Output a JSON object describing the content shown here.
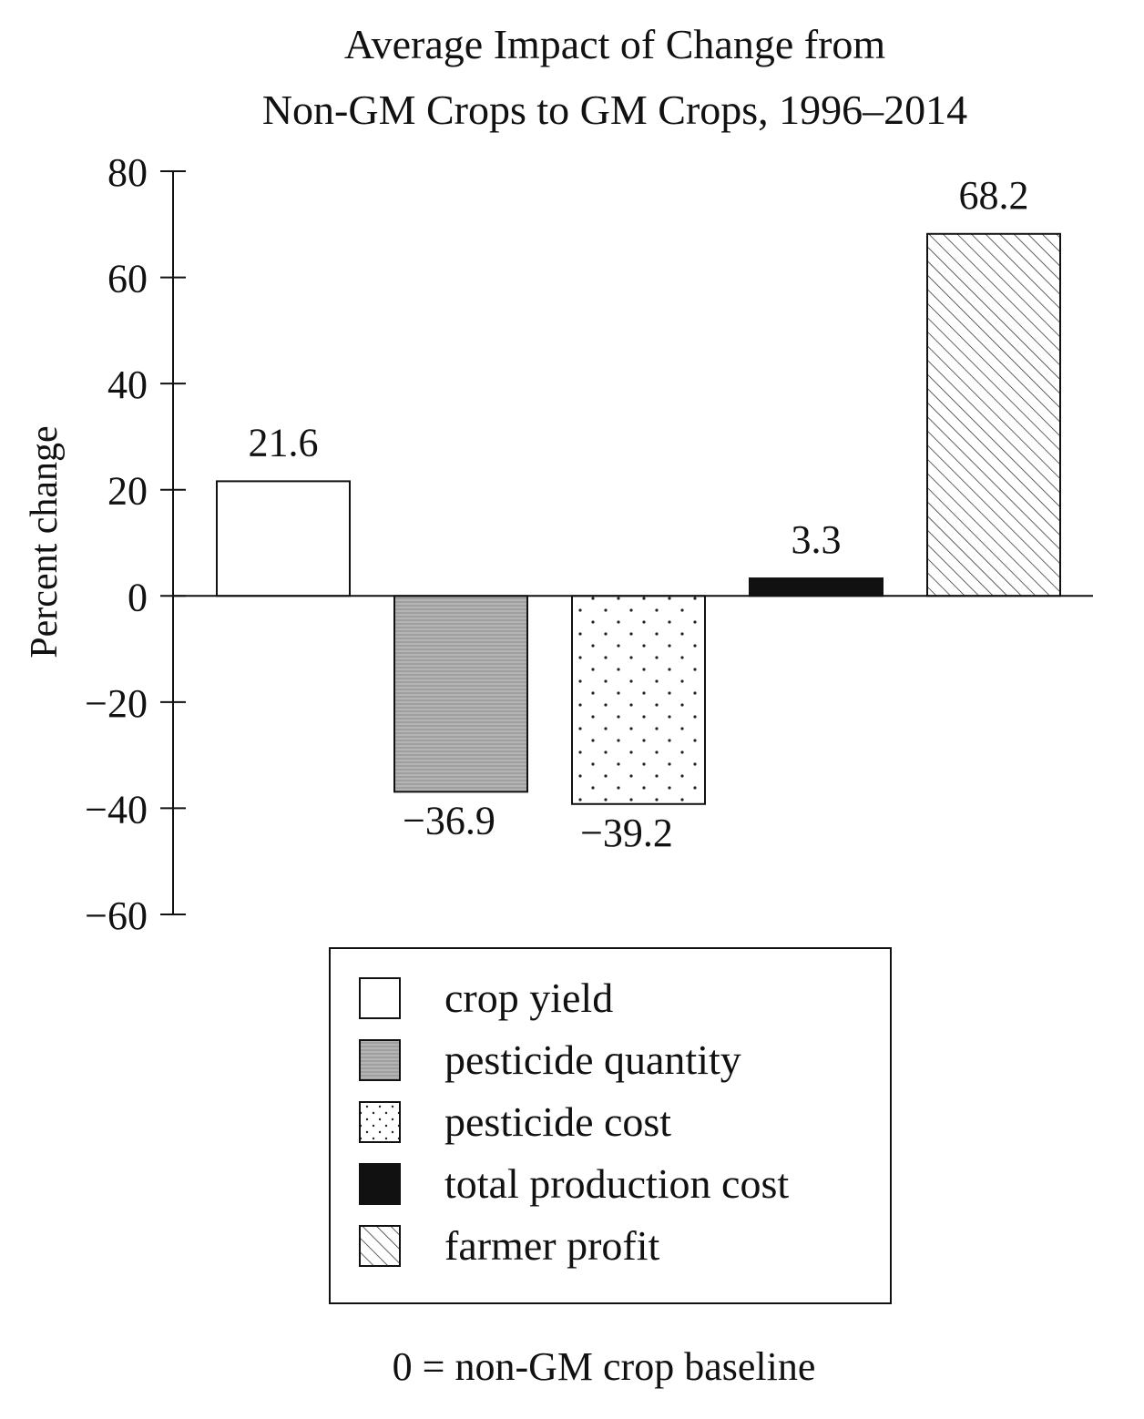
{
  "chart_data": {
    "type": "bar",
    "title_lines": [
      "Average Impact of Change from",
      "Non-GM Crops to GM Crops, 1996–2014"
    ],
    "ylabel": "Percent change",
    "xlabel": "",
    "ylim": [
      -60,
      80
    ],
    "yticks": [
      80,
      60,
      40,
      20,
      0,
      -20,
      -40,
      -60
    ],
    "ytick_labels": [
      "80",
      "60",
      "40",
      "20",
      "0",
      "−20",
      "−40",
      "−60"
    ],
    "categories": [
      "crop yield",
      "pesticide quantity",
      "pesticide cost",
      "total production cost",
      "farmer profit"
    ],
    "values": [
      21.6,
      -36.9,
      -39.2,
      3.3,
      68.2
    ],
    "value_labels": [
      "21.6",
      "−36.9",
      "−39.2",
      "3.3",
      "68.2"
    ],
    "fills": [
      "empty",
      "gray-hatch",
      "dots",
      "black",
      "diagonal-hatch"
    ],
    "legend": {
      "position": "below",
      "entries": [
        "crop yield",
        "pesticide quantity",
        "pesticide cost",
        "total production cost",
        "farmer profit"
      ]
    },
    "note": "0 = non-GM crop baseline",
    "grid": false
  }
}
